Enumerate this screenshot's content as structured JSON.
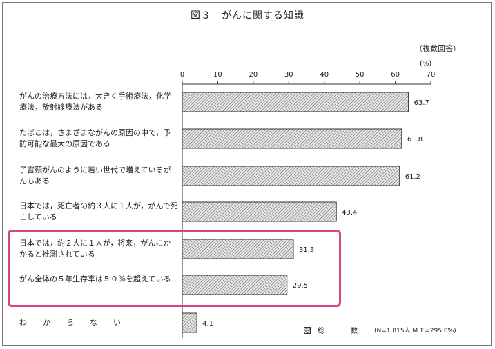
{
  "title": "図３　がんに関する知識",
  "note": "（複数回答）",
  "unit": "(%)",
  "legend": {
    "series_name": "総　数",
    "sample": "(N=1,815人,M.T.=295.0%)"
  },
  "chart_data": {
    "type": "bar",
    "orientation": "horizontal",
    "categories": [
      "がんの治療方法には，大きく手術療法，化学療法，放射線療法がある",
      "たばこは，さまざまながんの原因の中で，予防可能な最大の原因である",
      "子宮頸がんのように若い世代で増えているがんもある",
      "日本では，死亡者の約３人に１人が，がんで死亡している",
      "日本では，約２人に１人が，将来，がんにかかると推測されている",
      "がん全体の５年生存率は５０％を超えている",
      "わ　か　ら　な　い"
    ],
    "value_labels": [
      "63.7",
      "61.8",
      "61.2",
      "43.4",
      "31.3",
      "29.5",
      "4.1"
    ],
    "series": [
      {
        "name": "総　数",
        "values": [
          63.7,
          61.8,
          61.2,
          43.4,
          31.3,
          29.5,
          4.1
        ]
      }
    ],
    "xlim": [
      0,
      70
    ],
    "ticks": [
      "0",
      "10",
      "20",
      "30",
      "40",
      "50",
      "60",
      "70"
    ],
    "grid": false,
    "legend_position": "bottom-right",
    "highlighted_categories": [
      4,
      5
    ],
    "colors": {
      "bar_fill": "#cfcfcf",
      "bar_stroke": "#333333",
      "highlight": "#d6448a"
    }
  }
}
